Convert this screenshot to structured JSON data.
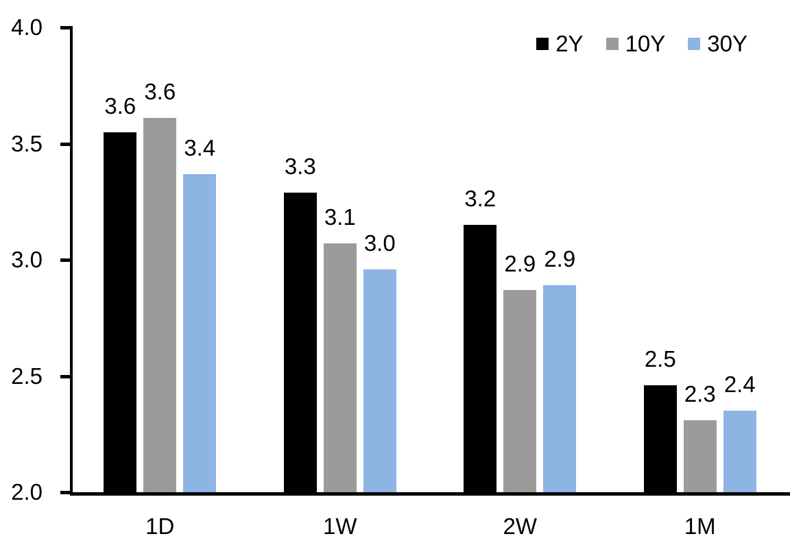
{
  "chart_data": {
    "type": "bar",
    "title": "",
    "xlabel": "",
    "ylabel": "",
    "categories": [
      "1D",
      "1W",
      "2W",
      "1M"
    ],
    "series": [
      {
        "name": "2Y",
        "color": "#000000",
        "values": [
          3.55,
          3.29,
          3.15,
          2.46
        ],
        "labels": [
          "3.6",
          "3.3",
          "3.2",
          "2.5"
        ]
      },
      {
        "name": "10Y",
        "color": "#9b9b9b",
        "values": [
          3.61,
          3.07,
          2.87,
          2.31
        ],
        "labels": [
          "3.6",
          "3.1",
          "2.9",
          "2.3"
        ]
      },
      {
        "name": "30Y",
        "color": "#8db4e2",
        "values": [
          3.37,
          2.96,
          2.89,
          2.35
        ],
        "labels": [
          "3.4",
          "3.0",
          "2.9",
          "2.4"
        ]
      }
    ],
    "ylim": [
      2.0,
      4.0
    ],
    "yticks": [
      "4.0",
      "3.5",
      "3.0",
      "2.5",
      "2.0"
    ],
    "grid": false,
    "legend_position": "top-right",
    "axis_color": "#000000",
    "background_color": "#ffffff"
  }
}
